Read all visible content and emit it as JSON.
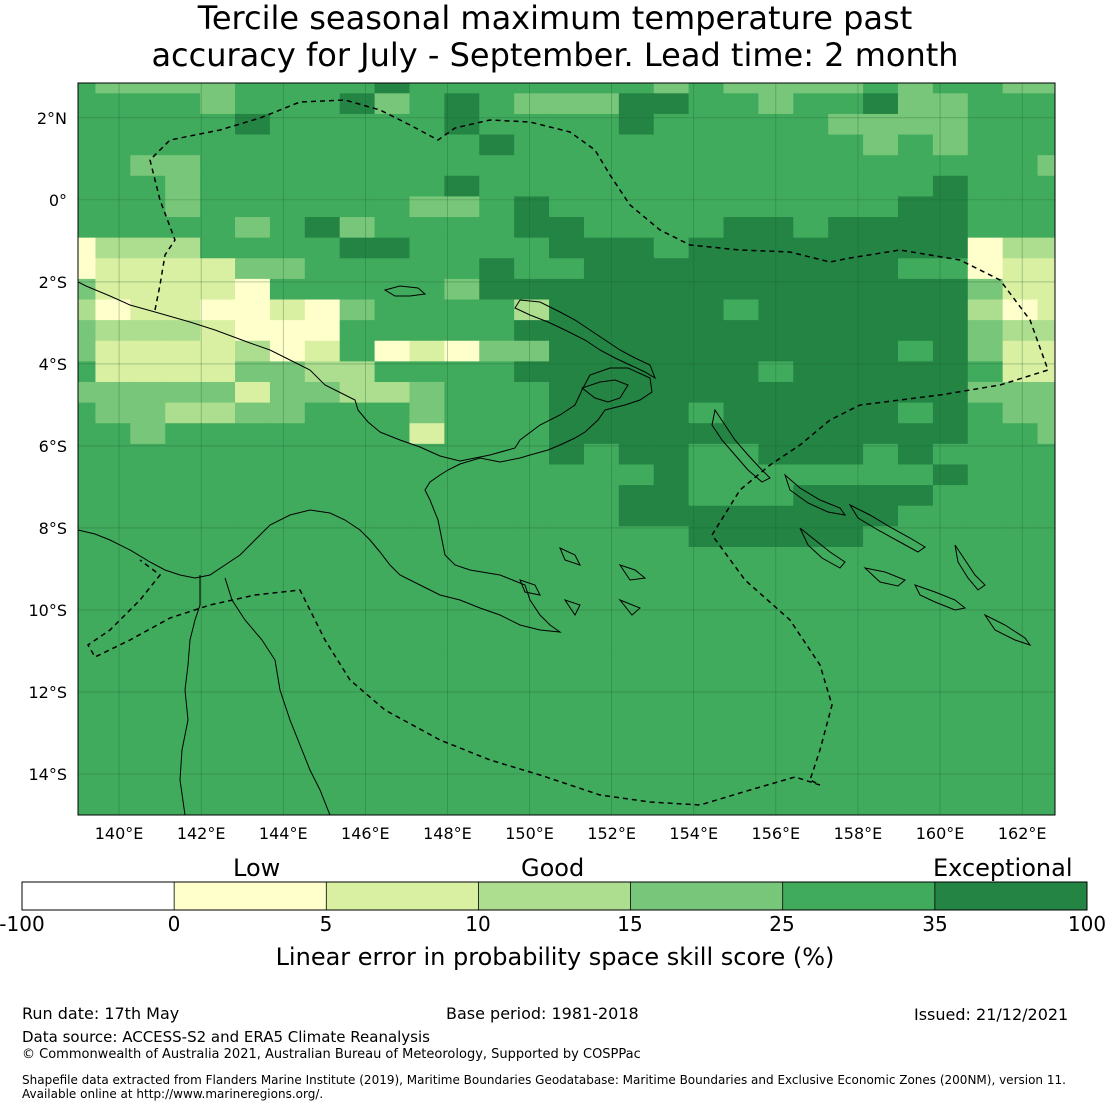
{
  "title": {
    "line1": "Tercile seasonal maximum temperature past",
    "line2": "accuracy for July - September. Lead time: 2 month"
  },
  "map": {
    "lat_labels": [
      "2°N",
      "0°",
      "2°S",
      "4°S",
      "6°S",
      "8°S",
      "10°S",
      "12°S",
      "14°S"
    ],
    "lon_labels": [
      "140°E",
      "142°E",
      "144°E",
      "146°E",
      "148°E",
      "150°E",
      "152°E",
      "154°E",
      "156°E",
      "158°E",
      "160°E",
      "162°E"
    ],
    "region": "Papua New Guinea EEZ",
    "layers": [
      "skill-score-grid",
      "coastlines",
      "eez-boundary"
    ]
  },
  "colorbar": {
    "categories": [
      "Low",
      "Good",
      "Exceptional"
    ],
    "ticks": [
      "-100",
      "0",
      "5",
      "10",
      "15",
      "25",
      "35",
      "100"
    ],
    "colors": [
      "#ffffff",
      "#ffffcc",
      "#d9f0a3",
      "#addd8e",
      "#78c679",
      "#41ab5d",
      "#238443"
    ],
    "label": "Linear error in probability space skill score (%)"
  },
  "footer": {
    "run_date": "Run date: 17th May",
    "base_period": "Base period: 1981-2018",
    "issued": "Issued: 21/12/2021",
    "data_source": "Data source: ACCESS-S2 and ERA5 Climate Reanalysis",
    "copyright": "© Commonwealth of Australia 2021, Australian Bureau of Meteorology, Supported by COSPPac",
    "shapefile_line1": "Shapefile data extracted from Flanders Marine Institute (2019), Maritime Boundaries Geodatabase: Maritime Boundaries and Exclusive Economic Zones (200NM), version 11.",
    "shapefile_line2": "Available online at http://www.marineregions.org/."
  }
}
